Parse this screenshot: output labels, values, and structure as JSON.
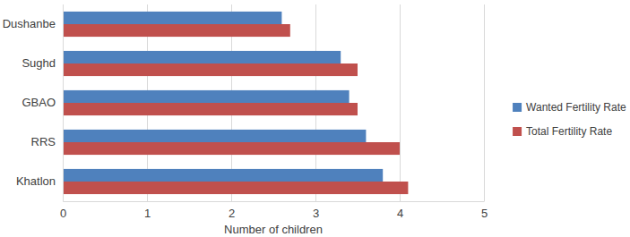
{
  "chart_data": {
    "type": "bar",
    "orientation": "horizontal",
    "x_label": "Number of children",
    "categories": [
      "Dushanbe",
      "Sughd",
      "GBAO",
      "RRS",
      "Khatlon"
    ],
    "series": [
      {
        "name": "Wanted Fertility Rate",
        "color": "#4f81bd",
        "values": [
          2.6,
          3.3,
          3.4,
          3.6,
          3.8
        ]
      },
      {
        "name": "Total Fertility Rate",
        "color": "#c0504d",
        "values": [
          2.7,
          3.5,
          3.5,
          4.0,
          4.1
        ]
      }
    ],
    "xlim": [
      0,
      5
    ],
    "xticks": [
      0,
      1,
      2,
      3,
      4,
      5
    ],
    "grid": true,
    "legend": "right"
  }
}
